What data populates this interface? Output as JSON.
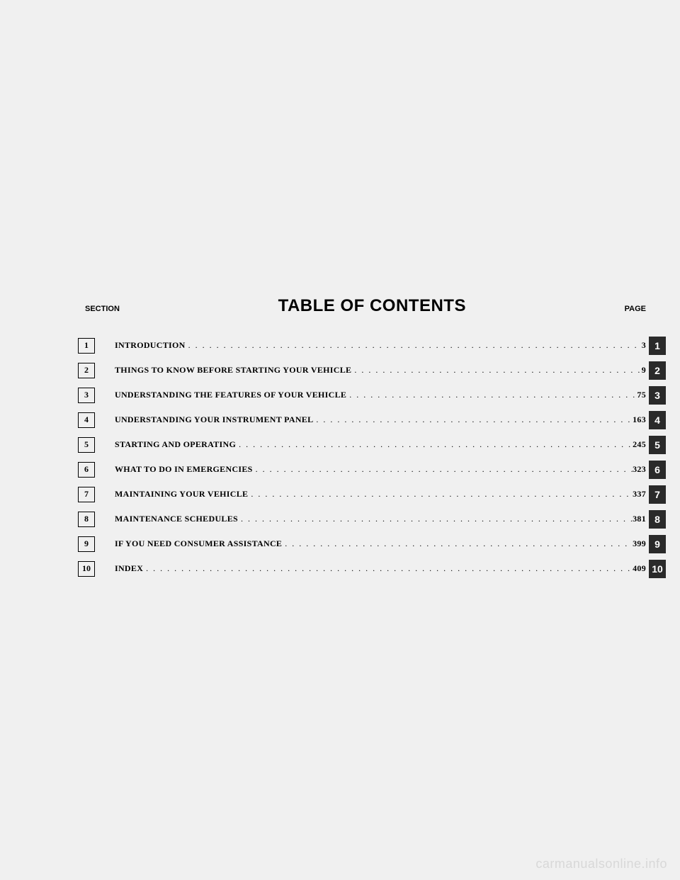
{
  "header": {
    "section_label": "SECTION",
    "title": "TABLE OF CONTENTS",
    "page_label": "PAGE"
  },
  "entries": [
    {
      "num": "1",
      "title": "INTRODUCTION",
      "page": "3"
    },
    {
      "num": "2",
      "title": "THINGS TO KNOW BEFORE STARTING YOUR VEHICLE",
      "page": "9"
    },
    {
      "num": "3",
      "title": "UNDERSTANDING THE FEATURES OF YOUR VEHICLE",
      "page": "75"
    },
    {
      "num": "4",
      "title": "UNDERSTANDING YOUR INSTRUMENT PANEL",
      "page": "163"
    },
    {
      "num": "5",
      "title": "STARTING AND OPERATING",
      "page": "245"
    },
    {
      "num": "6",
      "title": "WHAT TO DO IN EMERGENCIES",
      "page": "323"
    },
    {
      "num": "7",
      "title": "MAINTAINING YOUR VEHICLE",
      "page": "337"
    },
    {
      "num": "8",
      "title": "MAINTENANCE SCHEDULES",
      "page": "381"
    },
    {
      "num": "9",
      "title": "IF YOU NEED CONSUMER ASSISTANCE",
      "page": "399"
    },
    {
      "num": "10",
      "title": "INDEX",
      "page": "409"
    }
  ],
  "watermark": "carmanualsonline.info",
  "colors": {
    "background": "#f0f0f0",
    "box_border": "#000000",
    "right_box_bg": "#2a2a2a",
    "right_box_text": "#ffffff",
    "watermark": "#d8d8d8"
  }
}
